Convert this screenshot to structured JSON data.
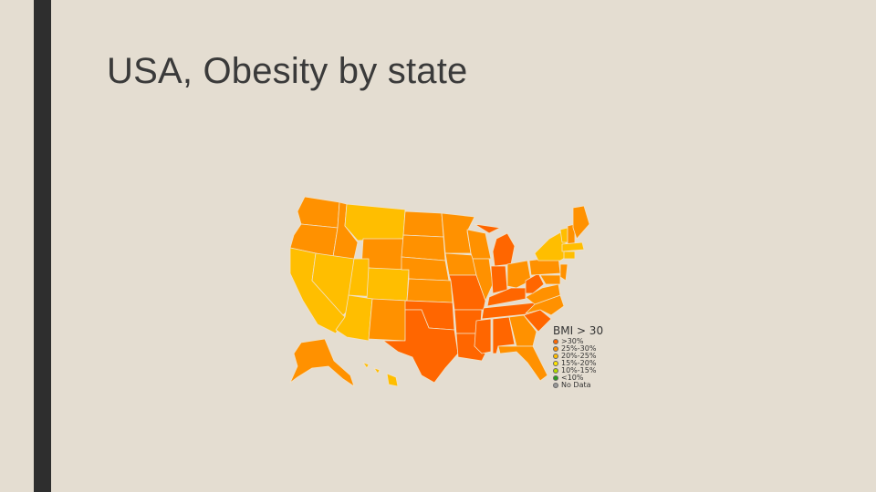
{
  "slide": {
    "title": "USA, Obesity by state"
  },
  "map": {
    "colors": {
      "over_30": "#ff6600",
      "25_30": "#ff9100",
      "20_25": "#ffbe00",
      "15_20": "#ffe600",
      "10_15": "#b5d900",
      "under_10": "#2a9d1f",
      "no_data": "#999999",
      "border": "#f2e2c6"
    },
    "legend": {
      "title": "BMI > 30",
      "items": [
        {
          "label": ">30%",
          "color": "#ff6600"
        },
        {
          "label": "25%-30%",
          "color": "#ff9100"
        },
        {
          "label": "20%-25%",
          "color": "#ffbe00"
        },
        {
          "label": "15%-20%",
          "color": "#ffe600"
        },
        {
          "label": "10%-15%",
          "color": "#b5d900"
        },
        {
          "label": "<10%",
          "color": "#2a9d1f"
        },
        {
          "label": "No Data",
          "color": "#999999"
        }
      ]
    }
  }
}
